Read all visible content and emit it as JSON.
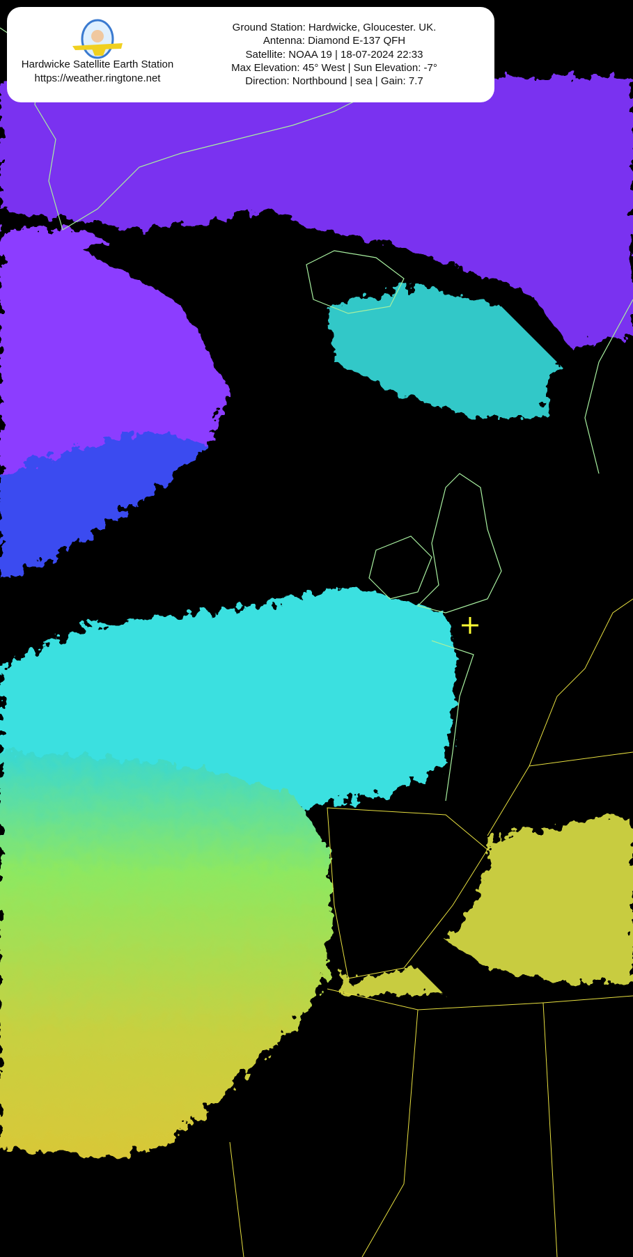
{
  "station": {
    "name": "Hardwicke Satellite Earth Station",
    "url": "https://weather.ringtone.net",
    "logo_icon": "the-phobic-flyer-logo"
  },
  "pass_info": {
    "lines": [
      "Ground Station: Hardwicke, Gloucester. UK.",
      "Antenna: Diamond E-137 QFH",
      "Satellite: NOAA 19 | 18-07-2024 22:33",
      "Max Elevation: 45° West | Sun Elevation: -7°",
      "Direction: Northbound | sea | Gain: 7.7"
    ]
  },
  "map": {
    "marker_icon": "yellow-cross-ground-station",
    "colors": {
      "marker": "#ffff33",
      "coast_north": "#a8f0a0",
      "borders": "#e8e040",
      "cloud_high": "#8a3cff",
      "cloud_mid": "#33e0e0",
      "warm": "#d4e030"
    }
  }
}
